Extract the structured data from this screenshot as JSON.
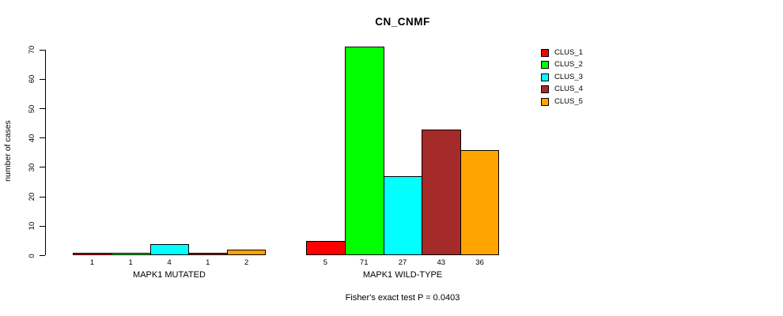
{
  "chart_data": {
    "type": "bar",
    "title": "CN_CNMF",
    "ylabel": "number of cases",
    "xlabel": "",
    "ylim": [
      0,
      70
    ],
    "yticks": [
      0,
      10,
      20,
      30,
      40,
      50,
      60,
      70
    ],
    "grid": false,
    "legend_position": "top-right",
    "categories": [
      "MAPK1 MUTATED",
      "MAPK1 WILD-TYPE"
    ],
    "series": [
      {
        "name": "CLUS_1",
        "color": "#FF0000",
        "values": [
          1,
          5
        ]
      },
      {
        "name": "CLUS_2",
        "color": "#00FF00",
        "values": [
          1,
          71
        ]
      },
      {
        "name": "CLUS_3",
        "color": "#00FFFF",
        "values": [
          4,
          27
        ]
      },
      {
        "name": "CLUS_4",
        "color": "#A52A2A",
        "values": [
          1,
          43
        ]
      },
      {
        "name": "CLUS_5",
        "color": "#FFA500",
        "values": [
          2,
          36
        ]
      }
    ],
    "bar_value_labels": true,
    "annotation": "Fisher's exact test P = 0.0403"
  }
}
